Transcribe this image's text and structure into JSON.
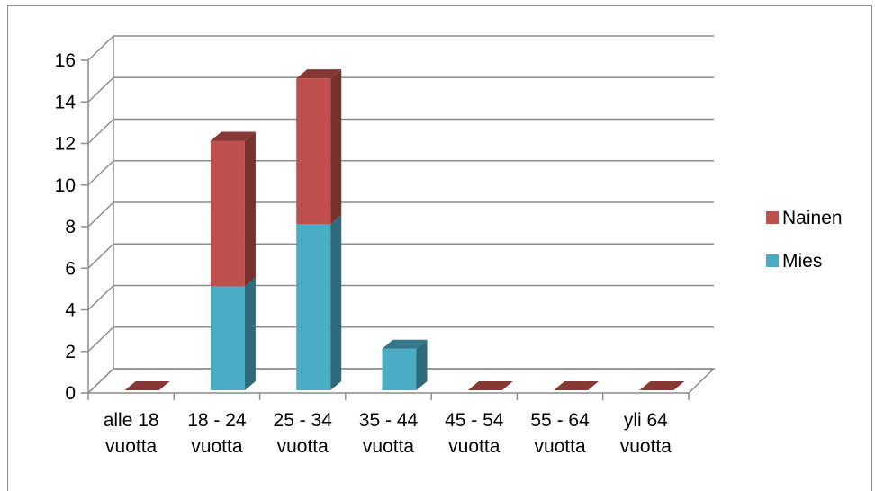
{
  "chart_data": {
    "type": "bar",
    "stacked": true,
    "three_d": true,
    "categories": [
      [
        "alle 18",
        "vuotta"
      ],
      [
        "18 - 24",
        "vuotta"
      ],
      [
        "25 - 34",
        "vuotta"
      ],
      [
        "35 - 44",
        "vuotta"
      ],
      [
        "45 - 54",
        "vuotta"
      ],
      [
        "55 - 64",
        "vuotta"
      ],
      [
        "yli 64",
        "vuotta"
      ]
    ],
    "series": [
      {
        "name": "Mies",
        "values": [
          0,
          5,
          8,
          2,
          0,
          0,
          0
        ],
        "color": "#4bacc6"
      },
      {
        "name": "Nainen",
        "values": [
          0,
          7,
          7,
          0,
          0,
          0,
          0
        ],
        "color": "#c0504d"
      }
    ],
    "ylim": [
      0,
      16
    ],
    "yticks": [
      "0",
      "2",
      "4",
      "6",
      "8",
      "10",
      "12",
      "14",
      "16"
    ],
    "grid": true,
    "legend_position": "right",
    "legend_order": [
      "Nainen",
      "Mies"
    ]
  }
}
